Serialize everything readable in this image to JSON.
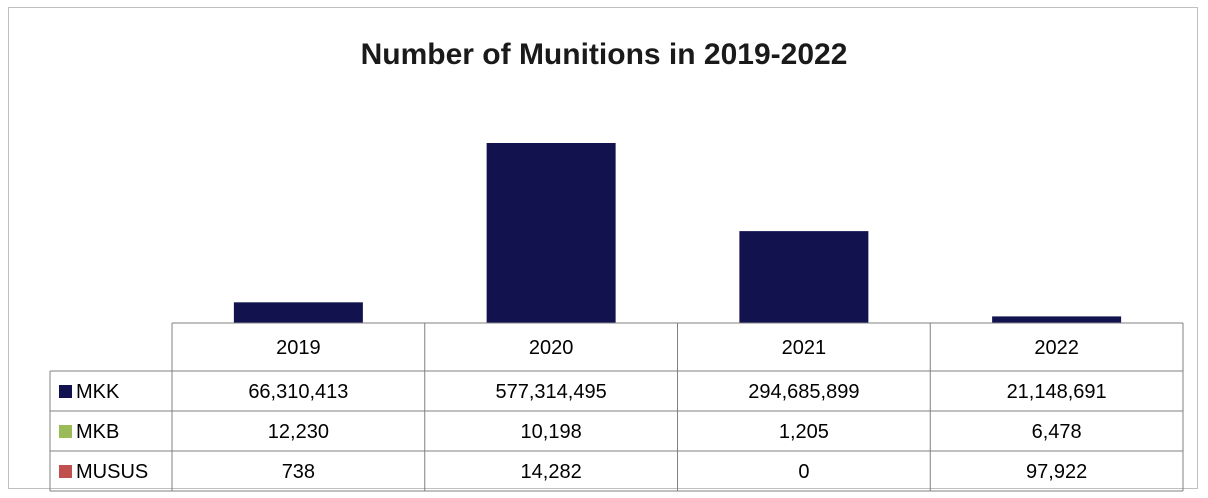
{
  "chart_data": {
    "type": "bar",
    "title": "Number of Munitions in 2019-2022",
    "categories": [
      "2019",
      "2020",
      "2021",
      "2022"
    ],
    "series": [
      {
        "name": "MKK",
        "color": "#12124f",
        "values": [
          66310413,
          577314495,
          294685899,
          21148691
        ],
        "labels": [
          "66,310,413",
          "577,314,495",
          "294,685,899",
          "21,148,691"
        ]
      },
      {
        "name": "MKB",
        "color": "#9bbb59",
        "values": [
          12230,
          10198,
          1205,
          6478
        ],
        "labels": [
          "12,230",
          "10,198",
          "1,205",
          "6,478"
        ]
      },
      {
        "name": "MUSUS",
        "color": "#c0504d",
        "values": [
          738,
          14282,
          0,
          97922
        ],
        "labels": [
          "738",
          "14,282",
          "0",
          "97,922"
        ]
      }
    ],
    "ylim": [
      0,
      577314495
    ],
    "grid": false,
    "legend": "data-table"
  }
}
